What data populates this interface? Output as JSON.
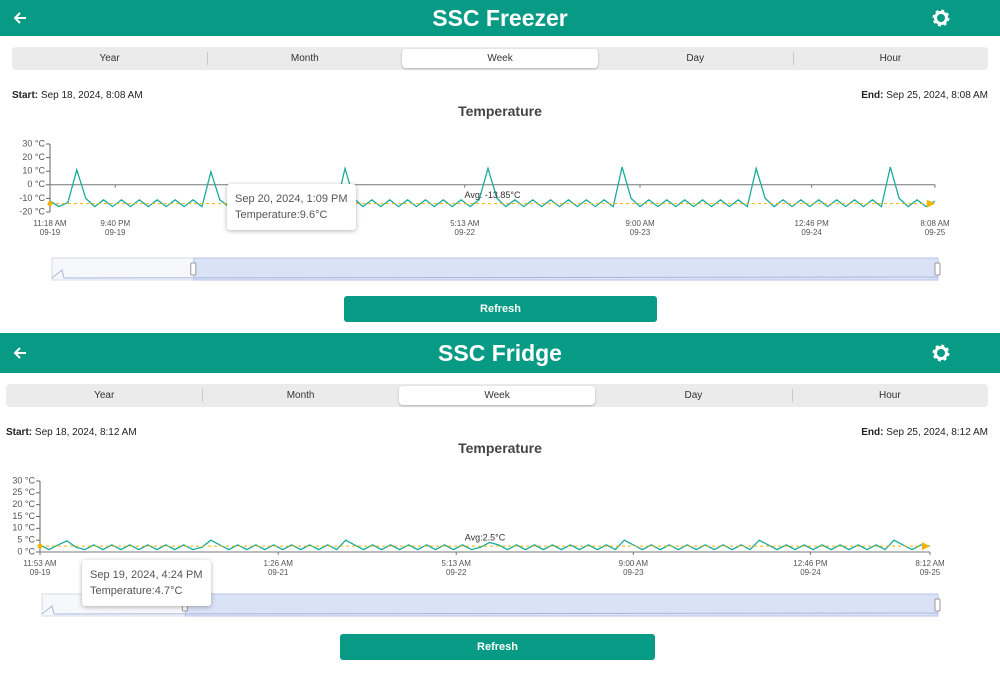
{
  "panels": [
    {
      "header": {
        "title": "SSC Freezer"
      },
      "tabs": [
        "Year",
        "Month",
        "Week",
        "Day",
        "Hour"
      ],
      "active_tab": "Week",
      "range": {
        "start_label": "Start:",
        "start": "Sep 18, 2024, 8:08 AM",
        "end_label": "End:",
        "end": "Sep 25, 2024, 8:08 AM"
      },
      "chart_data": {
        "type": "line",
        "title": "Temperature",
        "color": "#1aab9b",
        "values": [
          -12,
          -16,
          -13,
          11,
          -10,
          -16,
          -11,
          -16,
          -11,
          -16,
          -11,
          -16,
          -11,
          -16,
          -11,
          -16,
          -11,
          -16,
          9.6,
          -11,
          -16,
          -11,
          -16,
          -11,
          -16,
          -11,
          -16,
          -11,
          -16,
          -11,
          -16,
          -11,
          -16,
          12,
          -10,
          -16,
          -11,
          -16,
          -11,
          -16,
          -11,
          -16,
          -11,
          -16,
          -11,
          -16,
          -11,
          -16,
          -11,
          12,
          -10,
          -16,
          -11,
          -16,
          -11,
          -16,
          -11,
          -16,
          -11,
          -16,
          -11,
          -16,
          -11,
          -16,
          13,
          -10,
          -16,
          -11,
          -16,
          -11,
          -16,
          -11,
          -16,
          -11,
          -16,
          -11,
          -16,
          -11,
          -16,
          12,
          -10,
          -16,
          -11,
          -16,
          -11,
          -16,
          -11,
          -16,
          -11,
          -16,
          -11,
          -16,
          -11,
          -16,
          13,
          -10,
          -16,
          -11,
          -16,
          -12
        ],
        "xlim": [
          0,
          99
        ],
        "xticks": [
          {
            "value": 0,
            "label": "11:18 AM\n09-19"
          },
          {
            "value": 7.3,
            "label": "9:40 PM\n09-19"
          },
          {
            "value": 26.8,
            "label": "09-21"
          },
          {
            "value": 46.4,
            "label": "5:13 AM\n09-22"
          },
          {
            "value": 66,
            "label": "9:00 AM\n09-23"
          },
          {
            "value": 85.2,
            "label": "12:46 PM\n09-24"
          },
          {
            "value": 99,
            "label": "8:08 AM\n09-25"
          }
        ],
        "ylim": [
          -20,
          30
        ],
        "yticks": [
          {
            "value": 30,
            "label": "30 °C"
          },
          {
            "value": 20,
            "label": "20 °C"
          },
          {
            "value": 10,
            "label": "10 °C"
          },
          {
            "value": 0,
            "label": "0 °C"
          },
          {
            "value": -10,
            "label": "-10 °C"
          },
          {
            "value": -20,
            "label": "-20 °C"
          }
        ],
        "grid": false,
        "average": -13.85,
        "average_label": "Avg: -13.85°C",
        "average_color": "#f0b400",
        "tooltip": {
          "title": "Sep 20, 2024, 1:09 PM",
          "text": "Temperature:9.6°C"
        }
      },
      "button": "Refresh"
    },
    {
      "header": {
        "title": "SSC Fridge"
      },
      "tabs": [
        "Year",
        "Month",
        "Week",
        "Day",
        "Hour"
      ],
      "active_tab": "Week",
      "range": {
        "start_label": "Start:",
        "start": "Sep 18, 2024, 8:12 AM",
        "end_label": "End:",
        "end": "Sep 25, 2024, 8:12 AM"
      },
      "chart_data": {
        "type": "line",
        "title": "Temperature",
        "color": "#1aab9b",
        "values": [
          3,
          1,
          3,
          4.7,
          2,
          1,
          3,
          1,
          3,
          1,
          3,
          1,
          3,
          1,
          3,
          1,
          3,
          1,
          2,
          5,
          3,
          1,
          3,
          1,
          3,
          1,
          3,
          1,
          3,
          1,
          3,
          1,
          3,
          1,
          5,
          3,
          1,
          3,
          1,
          3,
          1,
          3,
          1,
          3,
          1,
          3,
          1,
          3,
          1,
          2,
          4,
          3,
          1,
          3,
          1,
          3,
          1,
          3,
          1,
          3,
          1,
          3,
          1,
          3,
          1,
          5,
          3,
          1,
          3,
          1,
          3,
          1,
          3,
          1,
          3,
          1,
          3,
          1,
          3,
          1,
          5,
          3,
          1,
          3,
          1,
          3,
          1,
          3,
          1,
          3,
          1,
          3,
          1,
          3,
          1,
          5,
          3,
          1,
          3,
          2.5
        ],
        "xlim": [
          0,
          99
        ],
        "xticks": [
          {
            "value": 0,
            "label": "11:53 AM\n09-19"
          },
          {
            "value": 26.5,
            "label": "1:26 AM\n09-21"
          },
          {
            "value": 46.3,
            "label": "5:13 AM\n09-22"
          },
          {
            "value": 66,
            "label": "9:00 AM\n09-23"
          },
          {
            "value": 85.7,
            "label": "12:46 PM\n09-24"
          },
          {
            "value": 99,
            "label": "8:12 AM\n09-25"
          }
        ],
        "ylim": [
          0,
          30
        ],
        "yticks": [
          {
            "value": 30,
            "label": "30 °C"
          },
          {
            "value": 25,
            "label": "25 °C"
          },
          {
            "value": 20,
            "label": "20 °C"
          },
          {
            "value": 15,
            "label": "15 °C"
          },
          {
            "value": 10,
            "label": "10 °C"
          },
          {
            "value": 5,
            "label": "5 °C"
          },
          {
            "value": 0,
            "label": "0 °C"
          }
        ],
        "grid": false,
        "average": 2.5,
        "average_label": "Avg:2.5°C",
        "average_color": "#f0b400",
        "tooltip": {
          "title": "Sep 19, 2024, 4:24 PM",
          "text": "Temperature:4.7°C"
        }
      },
      "button": "Refresh"
    }
  ]
}
